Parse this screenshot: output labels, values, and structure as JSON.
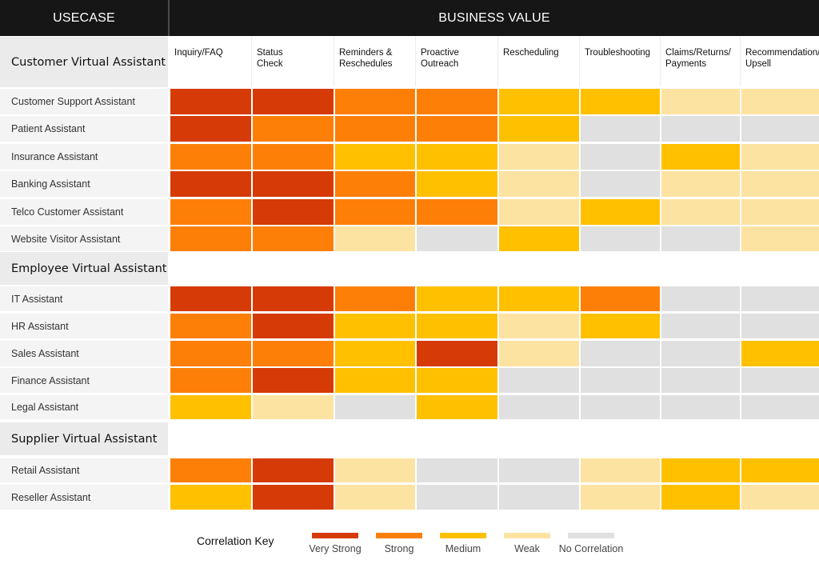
{
  "header": {
    "usecase_label": "USECASE",
    "business_value_label": "BUSINESS VALUE"
  },
  "columns": [
    "Inquiry/FAQ",
    "Status\nCheck",
    "Reminders &\nReschedules",
    "Proactive\nOutreach",
    "Rescheduling",
    "Troubleshooting",
    "Claims/Returns/\nPayments",
    "Recommendation/\nUpsell"
  ],
  "levels": {
    "VS": "#d63a07",
    "S": "#fd7f08",
    "M": "#ffc000",
    "W": "#fde3a2",
    "N": "#e0e0e0"
  },
  "groups": [
    {
      "title": "Customer Virtual Assistant",
      "rows": [
        {
          "label": "Customer Support Assistant",
          "values": [
            "VS",
            "VS",
            "S",
            "S",
            "M",
            "M",
            "W",
            "W"
          ]
        },
        {
          "label": "Patient Assistant",
          "values": [
            "VS",
            "S",
            "S",
            "S",
            "M",
            "N",
            "N",
            "N"
          ]
        },
        {
          "label": "Insurance Assistant",
          "values": [
            "S",
            "S",
            "M",
            "M",
            "W",
            "N",
            "M",
            "W"
          ]
        },
        {
          "label": "Banking Assistant",
          "values": [
            "VS",
            "VS",
            "S",
            "M",
            "W",
            "N",
            "W",
            "W"
          ]
        },
        {
          "label": "Telco Customer Assistant",
          "values": [
            "S",
            "VS",
            "S",
            "S",
            "W",
            "M",
            "W",
            "W"
          ]
        },
        {
          "label": "Website Visitor Assistant",
          "values": [
            "S",
            "S",
            "W",
            "N",
            "M",
            "N",
            "N",
            "W"
          ]
        }
      ]
    },
    {
      "title": "Employee Virtual Assistant",
      "rows": [
        {
          "label": "IT Assistant",
          "values": [
            "VS",
            "VS",
            "S",
            "M",
            "M",
            "S",
            "N",
            "N"
          ]
        },
        {
          "label": "HR Assistant",
          "values": [
            "S",
            "VS",
            "M",
            "M",
            "W",
            "M",
            "N",
            "N"
          ]
        },
        {
          "label": "Sales Assistant",
          "values": [
            "S",
            "S",
            "M",
            "VS",
            "W",
            "N",
            "N",
            "M"
          ]
        },
        {
          "label": "Finance Assistant",
          "values": [
            "S",
            "VS",
            "M",
            "M",
            "N",
            "N",
            "N",
            "N"
          ]
        },
        {
          "label": "Legal Assistant",
          "values": [
            "M",
            "W",
            "N",
            "M",
            "N",
            "N",
            "N",
            "N"
          ]
        }
      ]
    },
    {
      "title": "Supplier Virtual Assistant",
      "rows": [
        {
          "label": "Retail Assistant",
          "values": [
            "S",
            "VS",
            "W",
            "N",
            "N",
            "W",
            "M",
            "M"
          ]
        },
        {
          "label": "Reseller Assistant",
          "values": [
            "M",
            "VS",
            "W",
            "N",
            "N",
            "W",
            "M",
            "W"
          ]
        }
      ]
    }
  ],
  "legend": {
    "title": "Correlation Key",
    "items": [
      {
        "label": "Very Strong",
        "level": "VS"
      },
      {
        "label": "Strong",
        "level": "S"
      },
      {
        "label": "Medium",
        "level": "M"
      },
      {
        "label": "Weak",
        "level": "W"
      },
      {
        "label": "No Correlation",
        "level": "N"
      }
    ]
  }
}
